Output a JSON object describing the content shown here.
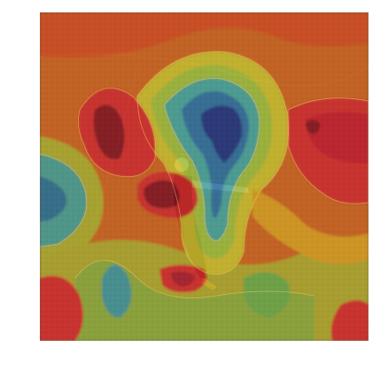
{
  "image": {
    "description_visible_text": "",
    "colormap": {
      "low": "#1f3b8f",
      "mid_low": "#2fa0b3",
      "mid": "#a6c23a",
      "mid_high": "#e0a61b",
      "high": "#e3262a",
      "peak": "#7a0c1a"
    },
    "background_tones": {
      "field": "#6e6a4b",
      "field_dark": "#3f3c2d"
    }
  }
}
